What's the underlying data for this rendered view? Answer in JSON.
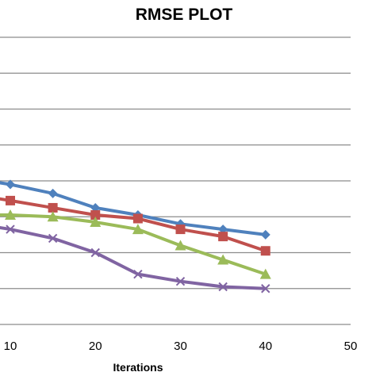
{
  "chart_data": {
    "type": "line",
    "title": "RMSE PLOT",
    "xlabel": "Iterations",
    "ylabel": "",
    "xlim": [
      8.7,
      50
    ],
    "ylim": [
      0,
      8
    ],
    "x_ticks": [
      "10",
      "20",
      "30",
      "40",
      "50"
    ],
    "grid": true,
    "series": [
      {
        "color": "#4f81bd",
        "marker": "diamond",
        "x": [
          8.7,
          10,
          15,
          20,
          25,
          30,
          35,
          40
        ],
        "y": [
          3.95,
          3.9,
          3.65,
          3.25,
          3.05,
          2.8,
          2.65,
          2.5
        ]
      },
      {
        "color": "#c0504d",
        "marker": "square",
        "x": [
          8.7,
          10,
          15,
          20,
          25,
          30,
          35,
          40
        ],
        "y": [
          3.5,
          3.45,
          3.25,
          3.05,
          2.95,
          2.65,
          2.45,
          2.05
        ]
      },
      {
        "color": "#9bbb59",
        "marker": "triangle",
        "x": [
          8.7,
          10,
          15,
          20,
          25,
          30,
          35,
          40
        ],
        "y": [
          3.05,
          3.05,
          3.0,
          2.85,
          2.65,
          2.2,
          1.8,
          1.4
        ]
      },
      {
        "color": "#8064a2",
        "marker": "x",
        "x": [
          8.7,
          10,
          15,
          20,
          25,
          30,
          35,
          40
        ],
        "y": [
          2.7,
          2.65,
          2.4,
          2.0,
          1.4,
          1.2,
          1.05,
          1.0
        ]
      }
    ]
  }
}
